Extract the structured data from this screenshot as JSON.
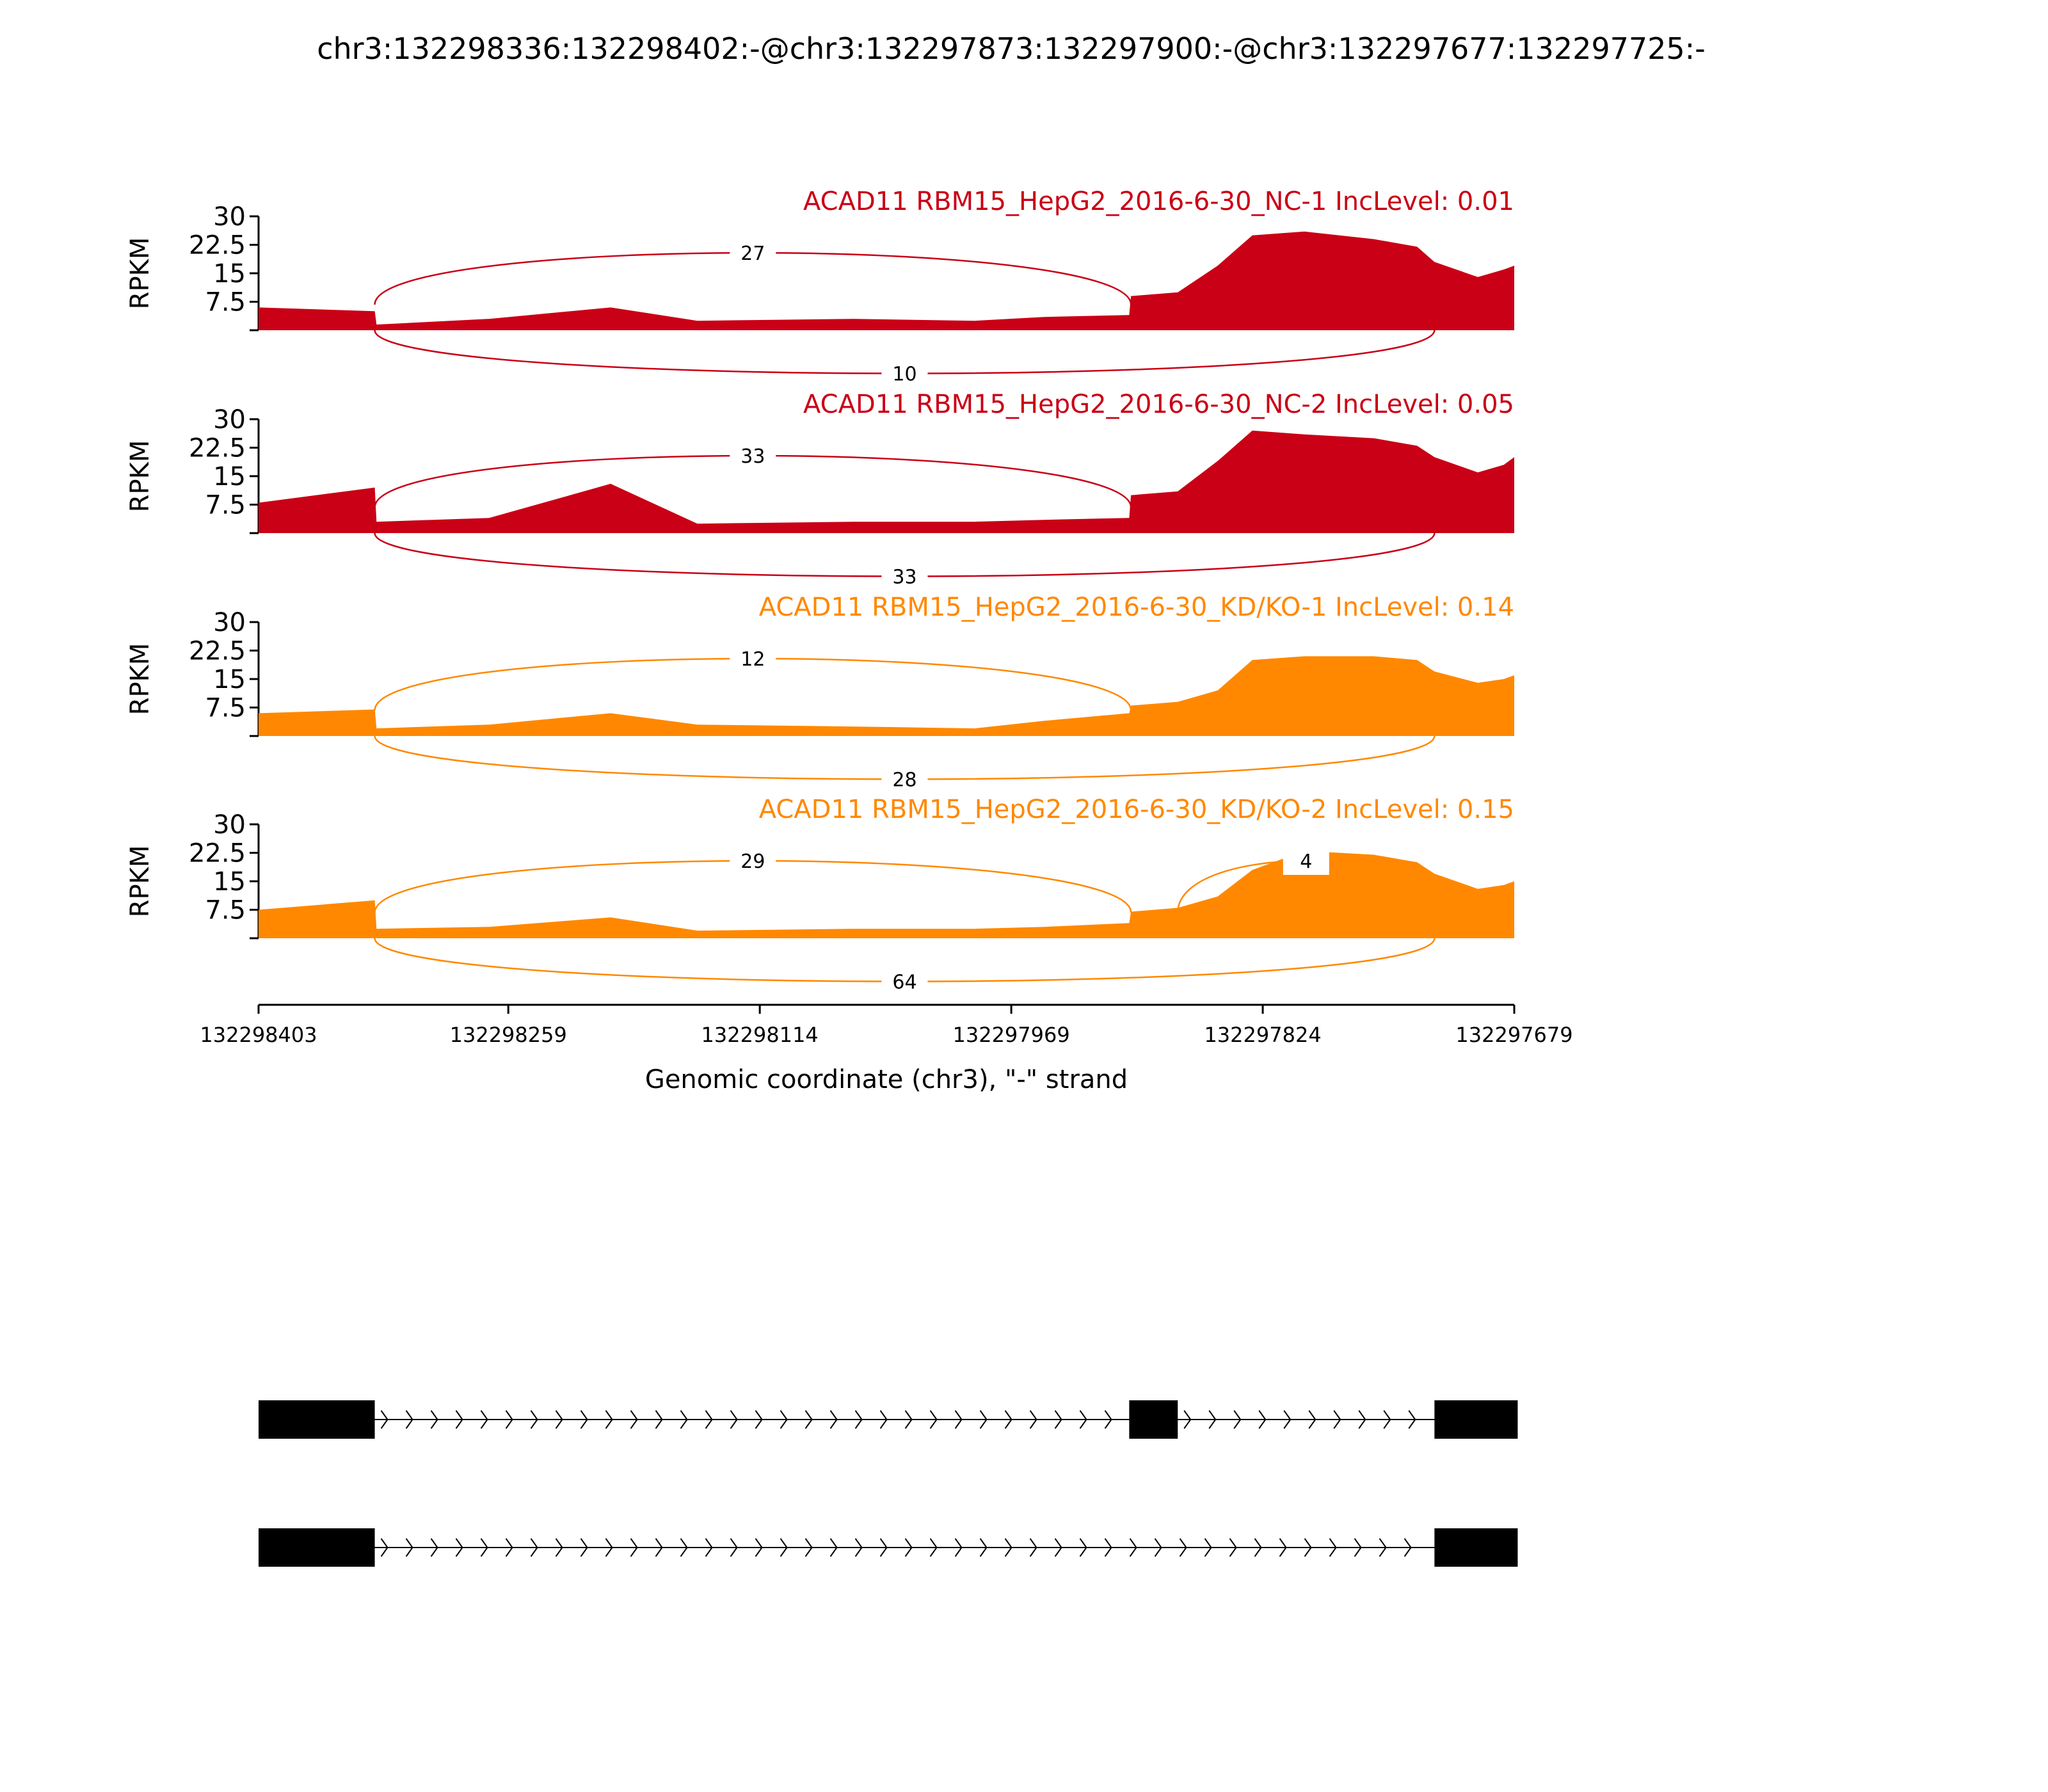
{
  "chart_data": {
    "type": "area",
    "title": "chr3:132298336:132298402:-@chr3:132297873:132297900:-@chr3:132297677:132297725:-",
    "xlabel": "Genomic coordinate (chr3), \"-\" strand",
    "ylabel": "RPKM",
    "x_ticks": [
      132298403,
      132298259,
      132298114,
      132297969,
      132297824,
      132297679
    ],
    "xlim": [
      132298403,
      132297679
    ],
    "ylim": [
      0,
      30
    ],
    "y_ticks": [
      "30",
      "22.5",
      "15",
      "7.5"
    ],
    "exons": [
      {
        "start": 132298403,
        "end": 132298336
      },
      {
        "start": 132297901,
        "end": 132297873
      },
      {
        "start": 132297725,
        "end": 132297677
      }
    ],
    "x_profile": [
      132298403,
      132298336,
      132298335,
      132298270,
      132298200,
      132298150,
      132298060,
      132297990,
      132297950,
      132297901,
      132297900,
      132297873,
      132297850,
      132297830,
      132297800,
      132297760,
      132297735,
      132297725,
      132297700,
      132297685,
      132297679
    ],
    "panels": [
      {
        "label": "ACAD11 RBM15_HepG2_2016-6-30_NC-1 IncLevel: 0.01",
        "color": "#c90016",
        "profile": [
          6,
          5,
          1.5,
          3,
          6,
          2.5,
          3,
          2.5,
          3.5,
          4,
          9,
          10,
          17,
          25,
          26,
          24,
          22,
          18,
          14,
          16,
          17
        ],
        "junctions": [
          {
            "from": 132298336,
            "to": 132297900,
            "count": "27",
            "side": "above"
          },
          {
            "from": 132298336,
            "to": 132297725,
            "count": "10",
            "side": "below"
          }
        ]
      },
      {
        "label": "ACAD11 RBM15_HepG2_2016-6-30_NC-2 IncLevel: 0.05",
        "color": "#c90016",
        "profile": [
          8,
          12,
          3,
          4,
          13,
          2.5,
          3,
          3,
          3.5,
          4,
          10,
          11,
          19,
          27,
          26,
          25,
          23,
          20,
          16,
          18,
          20
        ],
        "junctions": [
          {
            "from": 132298336,
            "to": 132297900,
            "count": "33",
            "side": "above"
          },
          {
            "from": 132298336,
            "to": 132297725,
            "count": "33",
            "side": "below"
          }
        ]
      },
      {
        "label": "ACAD11 RBM15_HepG2_2016-6-30_KD/KO-1 IncLevel: 0.14",
        "color": "#ff8800",
        "profile": [
          6,
          7,
          2,
          3,
          6,
          3,
          2.5,
          2,
          4,
          6,
          8,
          9,
          12,
          20,
          21,
          21,
          20,
          17,
          14,
          15,
          16
        ],
        "junctions": [
          {
            "from": 132298336,
            "to": 132297900,
            "count": "12",
            "side": "above"
          },
          {
            "from": 132298336,
            "to": 132297725,
            "count": "28",
            "side": "below"
          }
        ]
      },
      {
        "label": "ACAD11 RBM15_HepG2_2016-6-30_KD/KO-2 IncLevel: 0.15",
        "color": "#ff8800",
        "profile": [
          7.5,
          10,
          2.5,
          3,
          5.5,
          2,
          2.5,
          2.5,
          3,
          4,
          7,
          8,
          11,
          18,
          23,
          22,
          20,
          17,
          13,
          14,
          15
        ],
        "junctions": [
          {
            "from": 132298336,
            "to": 132297900,
            "count": "29",
            "side": "above"
          },
          {
            "from": 132298336,
            "to": 132297725,
            "count": "64",
            "side": "below"
          },
          {
            "from": 132297873,
            "to": 132297725,
            "count": "4",
            "side": "above"
          }
        ]
      }
    ]
  }
}
